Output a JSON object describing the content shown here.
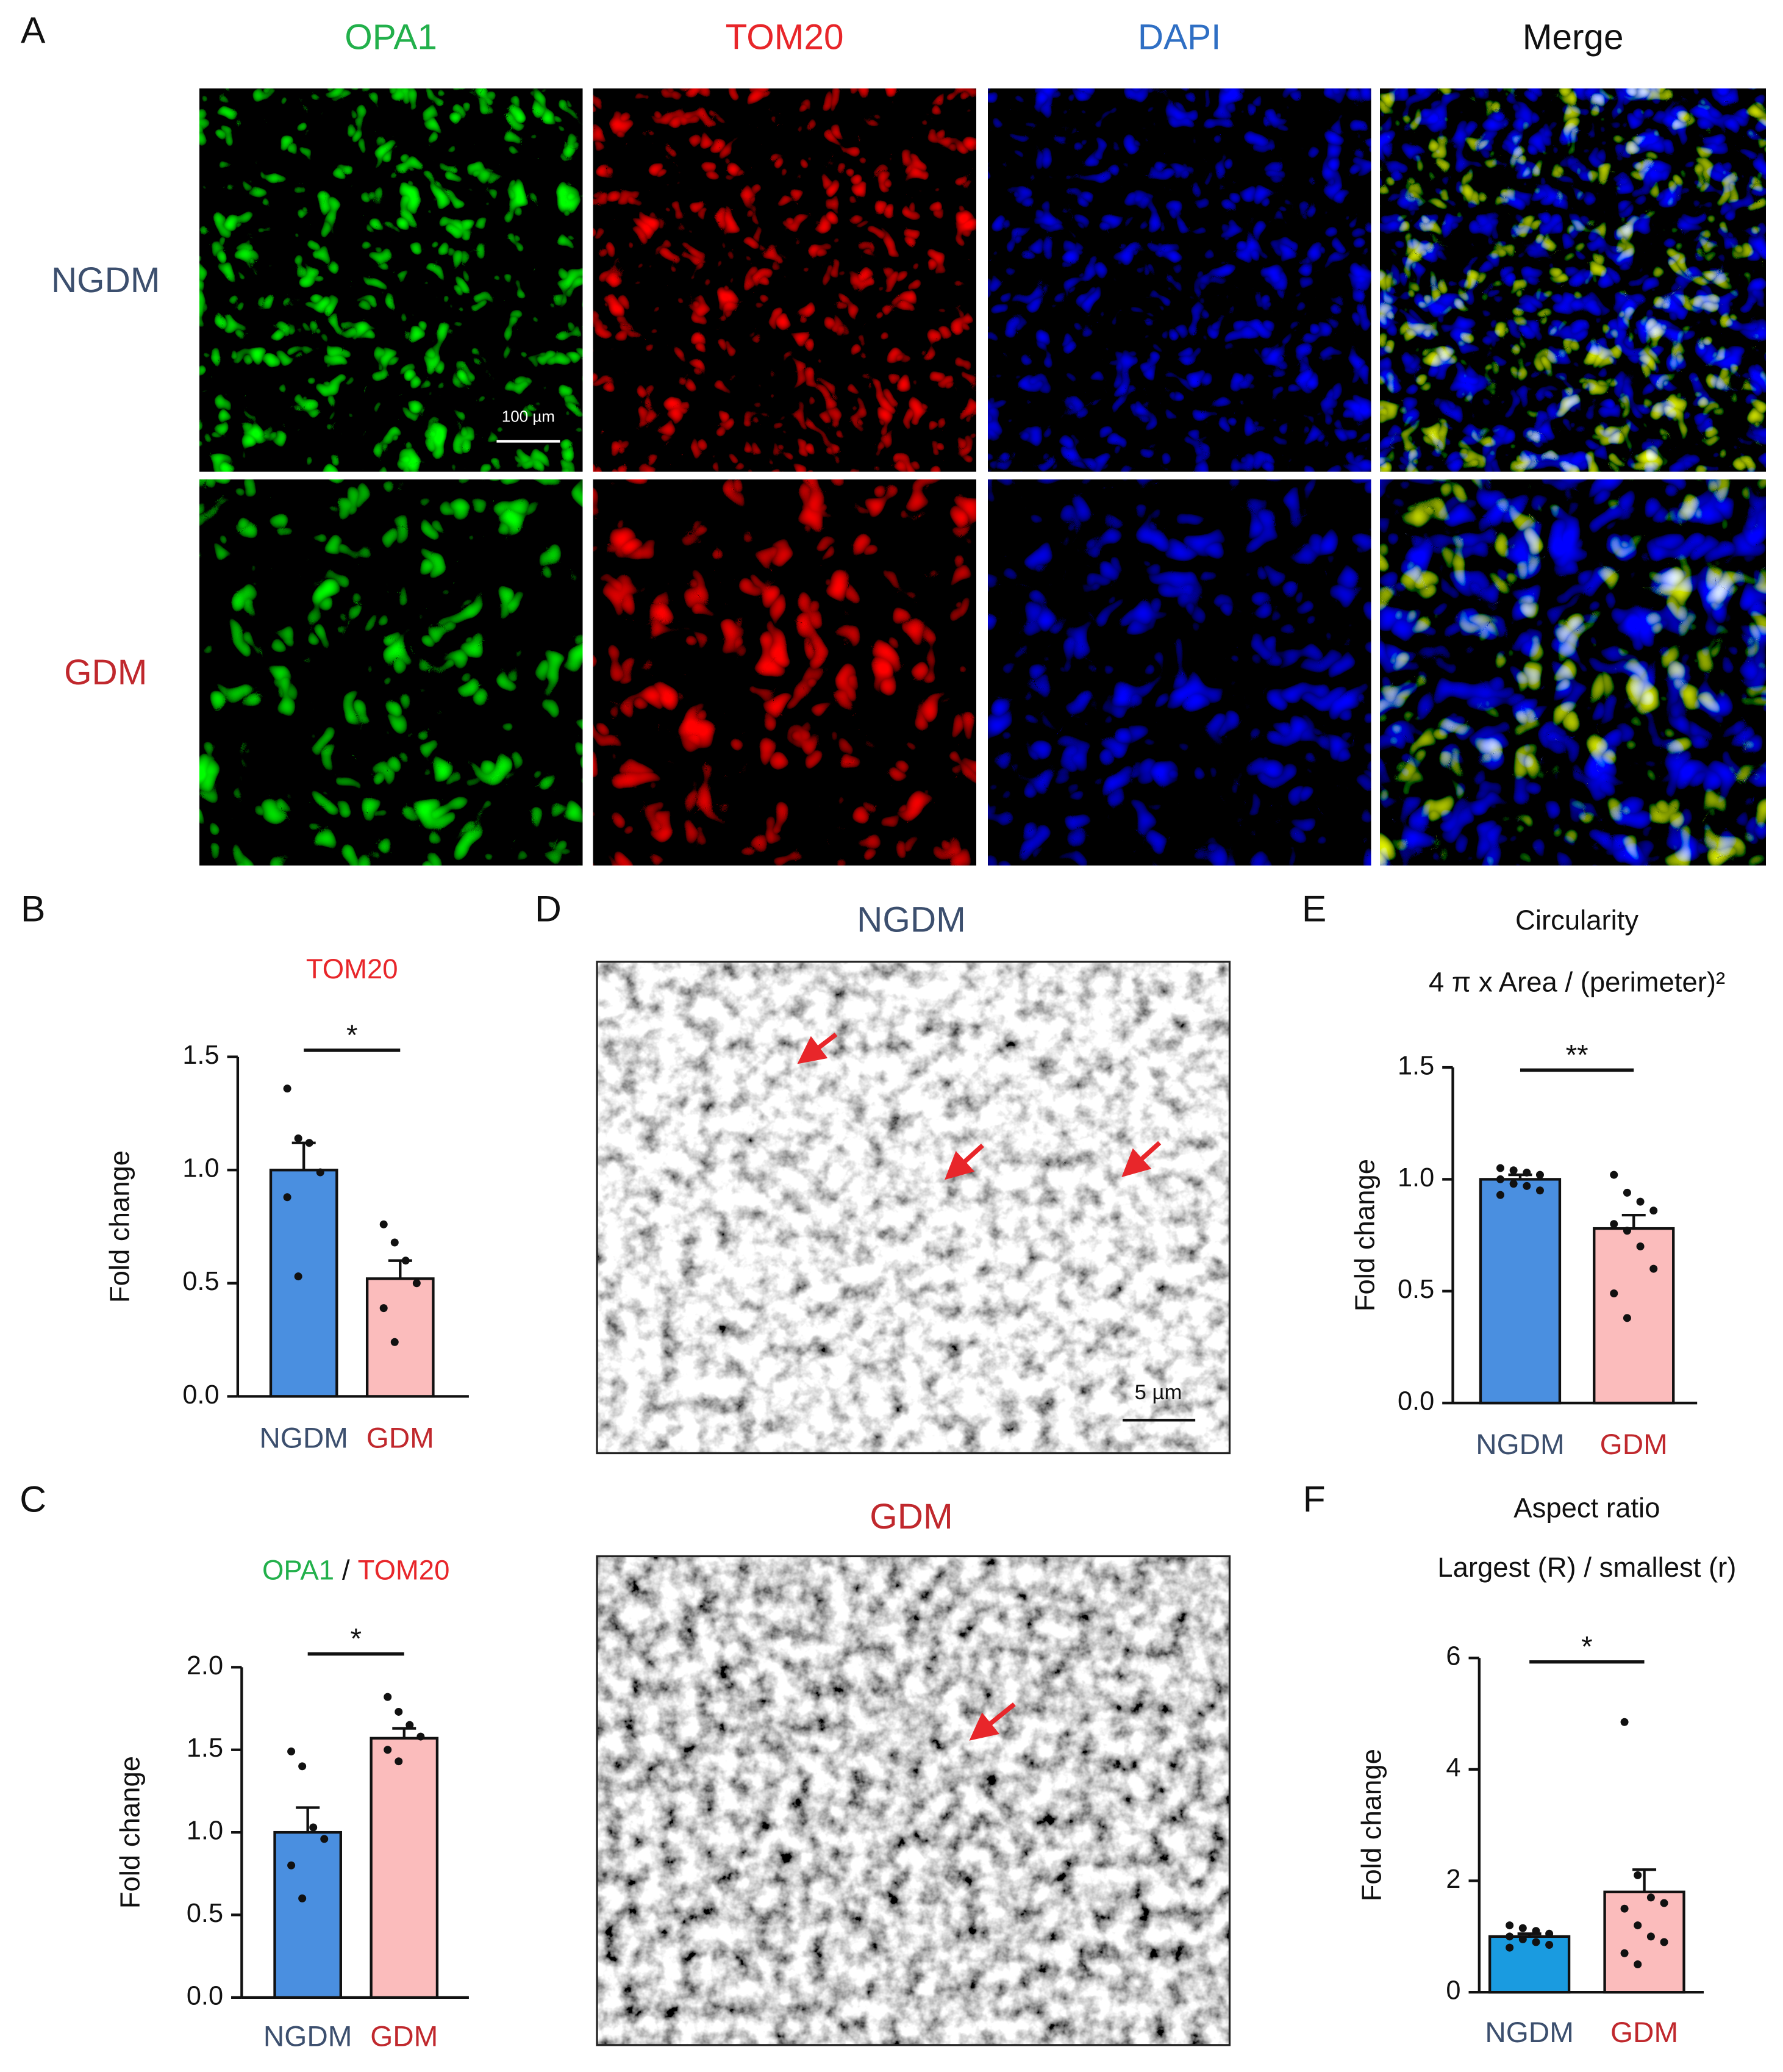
{
  "panel_labels": [
    "A",
    "B",
    "C",
    "D",
    "E",
    "F"
  ],
  "microscopy": {
    "channels": [
      "OPA1",
      "TOM20",
      "DAPI",
      "Merge"
    ],
    "channel_colors": [
      "#22b04b",
      "#e8262a",
      "#2f6fc4",
      "#111111"
    ],
    "rows": [
      "NGDM",
      "GDM"
    ],
    "row_colors": [
      "#3c4f6e",
      "#c0282d"
    ],
    "scale_bar": "100 µm"
  },
  "electron_microscopy": {
    "labels": [
      "NGDM",
      "GDM"
    ],
    "label_colors": [
      "#3c4f6e",
      "#c0282d"
    ],
    "scale_bar": "5 µm"
  },
  "chart_data": [
    {
      "type": "bar",
      "title": [
        {
          "text": "TOM20",
          "color": "#e8262a"
        }
      ],
      "ylabel": "Fold change",
      "categories": [
        "NGDM",
        "GDM"
      ],
      "category_colors": [
        "#3c4f6e",
        "#c0282d"
      ],
      "colors": [
        "#4a8fe0",
        "#fbbcbc"
      ],
      "values": [
        1.0,
        0.52
      ],
      "errors": [
        0.12,
        0.08
      ],
      "points": [
        [
          1.36,
          1.14,
          1.12,
          0.99,
          0.88,
          0.53
        ],
        [
          0.76,
          0.68,
          0.6,
          0.5,
          0.39,
          0.24
        ]
      ],
      "significance": "*",
      "ylim": [
        0,
        1.5
      ],
      "yticks": [
        {
          "value": 0,
          "label": "0.0"
        },
        0.5,
        {
          "value": 1,
          "label": "1.0"
        },
        1.5
      ]
    },
    {
      "type": "bar",
      "title": [
        {
          "text": "OPA1",
          "color": "#22b04b"
        },
        {
          "text": "/",
          "color": "#111111"
        },
        {
          "text": "TOM20",
          "color": "#e8262a"
        }
      ],
      "ylabel": "Fold change",
      "categories": [
        "NGDM",
        "GDM"
      ],
      "category_colors": [
        "#3c4f6e",
        "#c0282d"
      ],
      "colors": [
        "#4a8fe0",
        "#fbbcbc"
      ],
      "values": [
        1.0,
        1.57
      ],
      "errors": [
        0.15,
        0.06
      ],
      "points": [
        [
          1.49,
          1.4,
          1.03,
          0.96,
          0.8,
          0.6
        ],
        [
          1.82,
          1.73,
          1.65,
          1.58,
          1.5,
          1.43
        ]
      ],
      "significance": "*",
      "ylim": [
        0,
        2
      ],
      "yticks": [
        {
          "value": 0,
          "label": "0.0"
        },
        0.5,
        {
          "value": 1,
          "label": "1.0"
        },
        1.5,
        {
          "value": 2,
          "label": "2.0"
        }
      ]
    },
    {
      "type": "bar",
      "title": [
        {
          "text": "Circularity",
          "color": "#111111"
        }
      ],
      "subtitle": "4 π x Area / (perimeter)²",
      "ylabel": "Fold change",
      "categories": [
        "NGDM",
        "GDM"
      ],
      "category_colors": [
        "#3c4f6e",
        "#c0282d"
      ],
      "colors": [
        "#4a8fe0",
        "#fbbcbc"
      ],
      "values": [
        1.0,
        0.78
      ],
      "errors": [
        0.02,
        0.06
      ],
      "points": [
        [
          1.05,
          1.04,
          1.03,
          1.02,
          1.0,
          0.98,
          0.97,
          0.95,
          0.93
        ],
        [
          1.02,
          0.94,
          0.9,
          0.86,
          0.8,
          0.77,
          0.7,
          0.6,
          0.49,
          0.38
        ]
      ],
      "significance": "**",
      "ylim": [
        0,
        1.5
      ],
      "yticks": [
        {
          "value": 0,
          "label": "0.0"
        },
        0.5,
        {
          "value": 1,
          "label": "1.0"
        },
        1.5
      ]
    },
    {
      "type": "bar",
      "title": [
        {
          "text": "Aspect ratio",
          "color": "#111111"
        }
      ],
      "subtitle": "Largest (R) / smallest (r)",
      "ylabel": "Fold change",
      "categories": [
        "NGDM",
        "GDM"
      ],
      "category_colors": [
        "#3c4f6e",
        "#c0282d"
      ],
      "colors": [
        "#1a9be0",
        "#fbbcbc"
      ],
      "values": [
        1.0,
        1.8
      ],
      "errors": [
        0.05,
        0.4
      ],
      "points": [
        [
          1.2,
          1.15,
          1.1,
          1.05,
          1.0,
          0.95,
          0.9,
          0.85,
          0.8
        ],
        [
          4.85,
          2.1,
          1.7,
          1.6,
          1.5,
          1.2,
          1.0,
          0.9,
          0.7,
          0.5
        ]
      ],
      "significance": "*",
      "ylim": [
        0,
        6
      ],
      "yticks": [
        0,
        2,
        4,
        6
      ]
    }
  ]
}
